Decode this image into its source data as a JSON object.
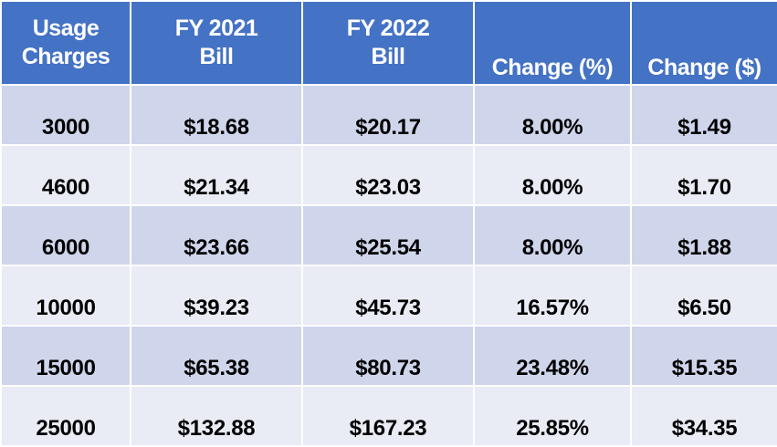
{
  "table": {
    "headers": [
      [
        "Usage",
        "Charges"
      ],
      [
        "FY 2021",
        "Bill"
      ],
      [
        "FY 2022",
        "Bill"
      ],
      [
        "Change (%)"
      ],
      [
        "Change ($)"
      ]
    ],
    "rows": [
      [
        "3000",
        "$18.68",
        "$20.17",
        "8.00%",
        "$1.49"
      ],
      [
        "4600",
        "$21.34",
        "$23.03",
        "8.00%",
        "$1.70"
      ],
      [
        "6000",
        "$23.66",
        "$25.54",
        "8.00%",
        "$1.88"
      ],
      [
        "10000",
        "$39.23",
        "$45.73",
        "16.57%",
        "$6.50"
      ],
      [
        "15000",
        "$65.38",
        "$80.73",
        "23.48%",
        "$15.35"
      ],
      [
        "25000",
        "$132.88",
        "$167.23",
        "25.85%",
        "$34.35"
      ]
    ],
    "colors": {
      "header_bg": "#4472c4",
      "header_text": "#ffffff",
      "row_dark": "#cfd5ea",
      "row_light": "#e9ebf5"
    }
  }
}
